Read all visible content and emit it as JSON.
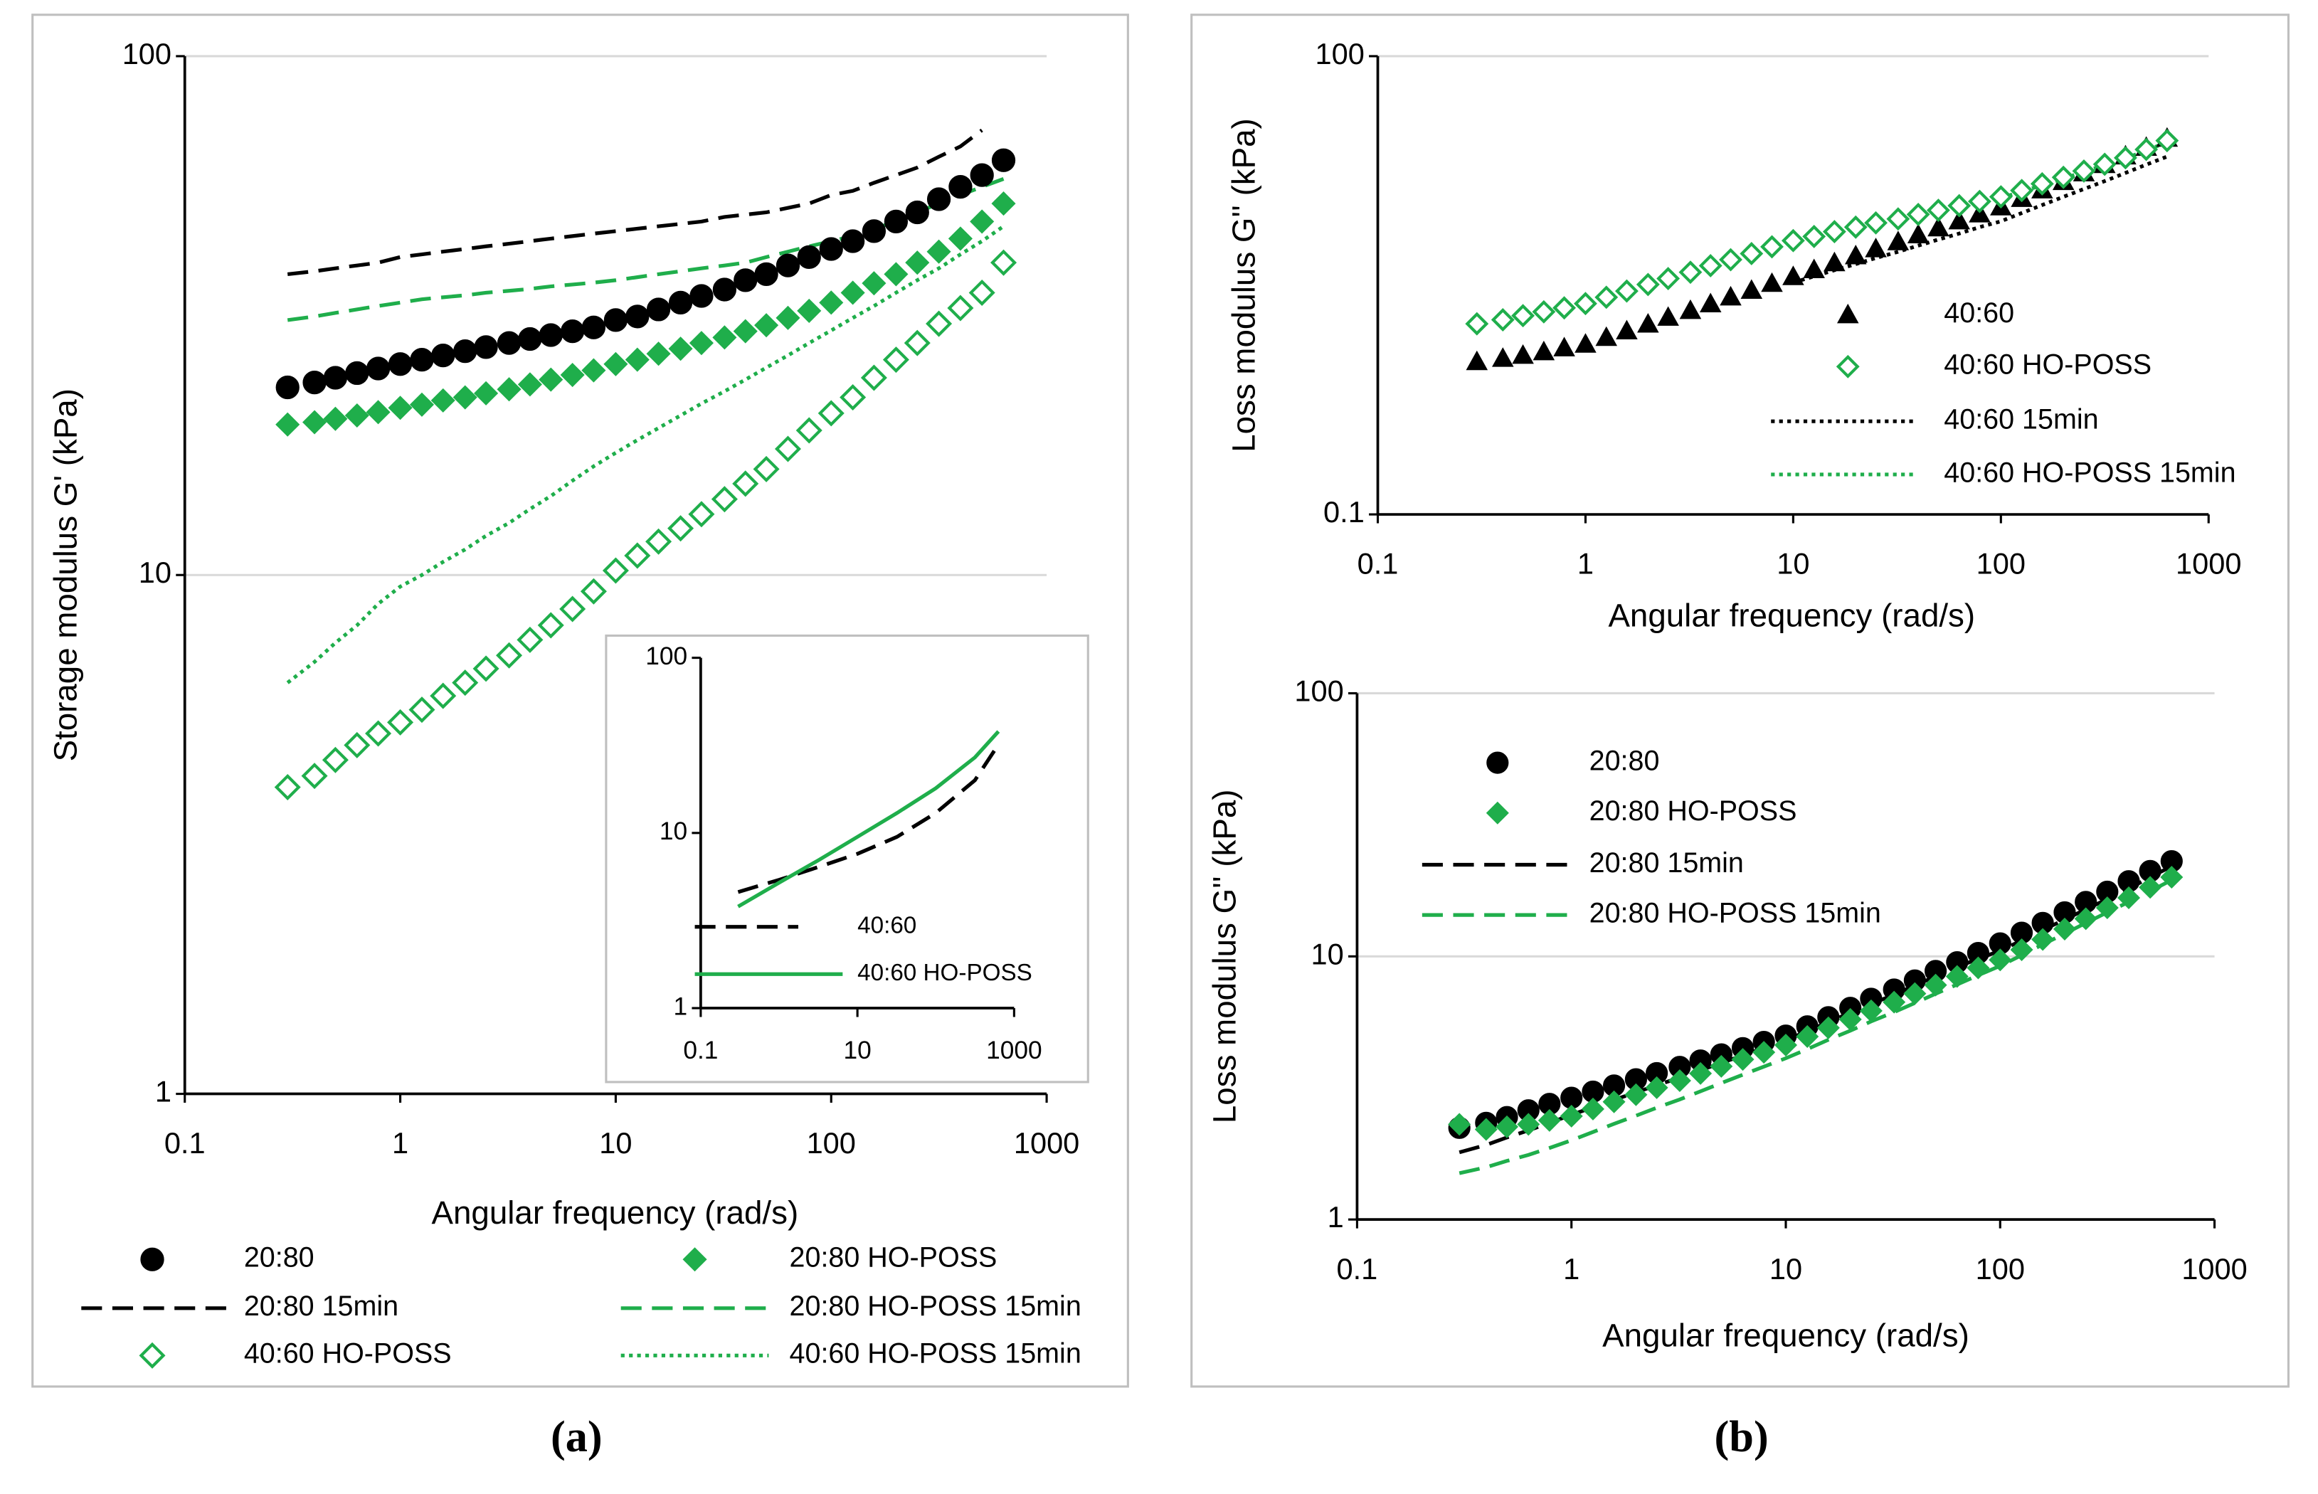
{
  "chart_data": [
    {
      "type": "line",
      "xlabel": "Angular frequency (rad/s)",
      "ylabel": "Storage modulus G' (kPa)",
      "log_x": true,
      "log_y": true,
      "grid": true,
      "xlim": [
        0.1,
        1000
      ],
      "xticks": [
        0.1,
        1,
        10,
        100,
        1000
      ],
      "ylim": [
        1,
        100
      ],
      "yticks": [
        1,
        10,
        100
      ],
      "x": [
        0.3,
        0.4,
        0.5,
        0.63,
        0.79,
        1,
        1.26,
        1.58,
        2,
        2.5,
        3.2,
        4,
        5,
        6.3,
        7.9,
        10,
        12.6,
        15.8,
        20,
        25,
        32,
        40,
        50,
        63,
        79,
        100,
        126,
        158,
        200,
        251,
        316,
        398,
        501,
        631
      ],
      "series": [
        {
          "name": "20:80",
          "color": "#000000",
          "marker": "circle",
          "values": [
            23,
            23.5,
            24,
            24.5,
            25,
            25.5,
            26,
            26.5,
            27,
            27.5,
            28,
            28.5,
            29,
            29.5,
            30,
            31,
            31.5,
            32.5,
            33.5,
            34.5,
            35.5,
            37,
            38,
            39.5,
            41,
            42.5,
            44,
            46,
            48,
            50,
            53,
            56,
            59,
            63
          ]
        },
        {
          "name": "20:80 HO-POSS",
          "color": "#1fae4b",
          "marker": "diamond",
          "values": [
            19.5,
            19.7,
            20,
            20.3,
            20.6,
            21,
            21.3,
            21.7,
            22,
            22.4,
            22.8,
            23.3,
            23.8,
            24.3,
            24.8,
            25.5,
            26,
            26.7,
            27.3,
            28,
            28.7,
            29.5,
            30.3,
            31.3,
            32.3,
            33.5,
            35,
            36.5,
            38,
            40,
            42,
            44.5,
            48,
            52
          ]
        },
        {
          "name": "20:80 15min",
          "color": "#000000",
          "line": "dashed",
          "values": [
            38,
            38.5,
            39,
            39.5,
            40,
            41,
            41.5,
            42,
            42.5,
            43,
            43.5,
            44,
            44.5,
            45,
            45.5,
            46,
            46.5,
            47,
            47.5,
            48,
            49,
            49.5,
            50,
            51,
            52,
            54,
            55,
            57,
            59,
            61,
            64,
            67,
            72,
            null
          ]
        },
        {
          "name": "20:80 HO-POSS 15min",
          "color": "#1fae4b",
          "line": "dashed",
          "values": [
            31,
            31.5,
            32,
            32.5,
            33,
            33.5,
            34,
            34.3,
            34.6,
            35,
            35.3,
            35.6,
            36,
            36.3,
            36.6,
            37,
            37.5,
            38,
            38.5,
            39,
            39.5,
            40,
            41,
            42,
            43,
            44,
            45,
            46.5,
            48,
            50,
            52,
            54,
            56,
            58
          ]
        },
        {
          "name": "40:60 HO-POSS",
          "color": "#1fae4b",
          "marker": "diamond-open",
          "values": [
            3.9,
            4.1,
            4.4,
            4.7,
            4.95,
            5.2,
            5.5,
            5.85,
            6.2,
            6.6,
            7.0,
            7.5,
            8.0,
            8.6,
            9.3,
            10.2,
            10.9,
            11.6,
            12.3,
            13.1,
            14,
            15,
            16,
            17.5,
            19,
            20.5,
            22,
            24,
            26,
            28,
            30.5,
            32.7,
            35,
            40
          ]
        },
        {
          "name": "40:60 HO-POSS 15min",
          "color": "#1fae4b",
          "line": "dotted",
          "values": [
            6.2,
            6.8,
            7.4,
            8,
            8.8,
            9.5,
            10,
            10.6,
            11.2,
            11.9,
            12.6,
            13.4,
            14.2,
            15.2,
            16.2,
            17.2,
            18.2,
            19.2,
            20.3,
            21.4,
            22.6,
            23.8,
            25.1,
            26.5,
            28,
            29.6,
            31.3,
            33,
            35,
            37,
            39,
            41.5,
            44,
            47
          ]
        }
      ]
    },
    {
      "type": "line",
      "log_x": true,
      "log_y": true,
      "grid": false,
      "xlim": [
        0.1,
        1000
      ],
      "xticks": [
        0.1,
        10,
        1000
      ],
      "ylim": [
        1,
        100
      ],
      "yticks": [
        1,
        10,
        100
      ],
      "x": [
        0.3,
        1,
        3.2,
        10,
        32,
        100,
        316,
        631
      ],
      "series": [
        {
          "name": "40:60",
          "color": "#000000",
          "line": "dashed",
          "values": [
            4.6,
            5.4,
            6.4,
            7.6,
            9.5,
            13,
            20,
            32
          ]
        },
        {
          "name": "40:60 HO-POSS",
          "color": "#1fae4b",
          "line": "solid",
          "values": [
            3.8,
            5.2,
            7.0,
            9.5,
            13,
            18,
            27,
            38
          ]
        }
      ]
    },
    {
      "type": "line",
      "xlabel": "Angular frequency (rad/s)",
      "ylabel": "Loss modulus G'' (kPa)",
      "log_x": true,
      "log_y": true,
      "grid": true,
      "xlim": [
        0.1,
        1000
      ],
      "xticks": [
        0.1,
        1,
        10,
        100,
        1000
      ],
      "ylim": [
        0.1,
        100
      ],
      "yticks": [
        0.1,
        100
      ],
      "x": [
        0.3,
        0.4,
        0.5,
        0.63,
        0.79,
        1,
        1.26,
        1.58,
        2,
        2.5,
        3.2,
        4,
        5,
        6.3,
        7.9,
        10,
        12.6,
        15.8,
        20,
        25,
        32,
        40,
        50,
        63,
        79,
        100,
        126,
        158,
        200,
        251,
        316,
        398,
        501,
        631
      ],
      "series": [
        {
          "name": "40:60",
          "color": "#000000",
          "marker": "triangle",
          "values": [
            1.0,
            1.05,
            1.1,
            1.16,
            1.23,
            1.3,
            1.44,
            1.59,
            1.76,
            1.95,
            2.16,
            2.39,
            2.65,
            2.93,
            3.25,
            3.6,
            4.0,
            4.44,
            4.93,
            5.48,
            6.09,
            6.76,
            7.51,
            8.34,
            9.27,
            10.3,
            11.7,
            13.3,
            15.1,
            17.2,
            19.5,
            22.2,
            25.3,
            29
          ]
        },
        {
          "name": "40:60 HO-POSS",
          "color": "#1fae4b",
          "marker": "diamond-open",
          "values": [
            1.77,
            1.88,
            2.0,
            2.12,
            2.25,
            2.4,
            2.64,
            2.9,
            3.2,
            3.5,
            3.85,
            4.25,
            4.65,
            5.1,
            5.65,
            6.2,
            6.6,
            7.1,
            7.6,
            8.1,
            8.6,
            9.2,
            9.8,
            10.5,
            11.2,
            12,
            13.2,
            14.6,
            16.1,
            17.7,
            19.6,
            21.6,
            24.5,
            28
          ]
        },
        {
          "name": "40:60 15min",
          "color": "#000000",
          "line": "dotted",
          "values": [
            null,
            null,
            null,
            null,
            null,
            null,
            null,
            null,
            null,
            null,
            null,
            null,
            null,
            null,
            null,
            3.3,
            3.62,
            3.97,
            4.35,
            4.77,
            5.24,
            5.75,
            6.3,
            6.9,
            7.6,
            8.3,
            9.4,
            10.6,
            12,
            13.5,
            15.2,
            17.2,
            19.5,
            22
          ]
        },
        {
          "name": "40:60 HO-POSS 15min",
          "color": "#1fae4b",
          "line": "dotted",
          "values": [
            null,
            null,
            null,
            null,
            null,
            null,
            null,
            null,
            null,
            null,
            null,
            null,
            null,
            null,
            null,
            null,
            null,
            null,
            null,
            null,
            null,
            null,
            null,
            null,
            null,
            11.8,
            13,
            14.3,
            15.8,
            17.5,
            19.4,
            21.5,
            24,
            27.5
          ]
        }
      ]
    },
    {
      "type": "line",
      "xlabel": "Angular frequency (rad/s)",
      "ylabel": "Loss modulus G'' (kPa)",
      "log_x": true,
      "log_y": true,
      "grid": true,
      "xlim": [
        0.1,
        1000
      ],
      "xticks": [
        0.1,
        1,
        10,
        100,
        1000
      ],
      "ylim": [
        1,
        100
      ],
      "yticks": [
        1,
        10,
        100
      ],
      "x": [
        0.3,
        0.4,
        0.5,
        0.63,
        0.79,
        1,
        1.26,
        1.58,
        2,
        2.5,
        3.2,
        4,
        5,
        6.3,
        7.9,
        10,
        12.6,
        15.8,
        20,
        25,
        32,
        40,
        50,
        63,
        79,
        100,
        126,
        158,
        200,
        251,
        316,
        398,
        501,
        631
      ],
      "series": [
        {
          "name": "20:80",
          "color": "#000000",
          "marker": "circle",
          "values": [
            2.23,
            2.33,
            2.45,
            2.6,
            2.75,
            2.9,
            3.06,
            3.23,
            3.41,
            3.6,
            3.8,
            4.02,
            4.24,
            4.48,
            4.73,
            5.0,
            5.42,
            5.87,
            6.37,
            6.9,
            7.48,
            8.1,
            8.8,
            9.5,
            10.3,
            11.2,
            12.3,
            13.4,
            14.7,
            16.1,
            17.6,
            19.3,
            21.1,
            23
          ]
        },
        {
          "name": "20:80 HO-POSS",
          "color": "#1fae4b",
          "marker": "diamond",
          "values": [
            2.3,
            2.2,
            2.25,
            2.3,
            2.38,
            2.47,
            2.63,
            2.8,
            2.98,
            3.17,
            3.37,
            3.59,
            3.82,
            4.06,
            4.32,
            4.6,
            4.96,
            5.35,
            5.76,
            6.21,
            6.7,
            7.22,
            7.78,
            8.39,
            9.04,
            9.7,
            10.6,
            11.6,
            12.7,
            13.9,
            15.3,
            16.7,
            18.3,
            20
          ]
        },
        {
          "name": "20:80 15min",
          "color": "#000000",
          "line": "dashed",
          "values": [
            1.8,
            1.92,
            2.05,
            2.18,
            2.33,
            2.5,
            2.67,
            2.85,
            3.04,
            3.24,
            3.46,
            3.69,
            3.94,
            4.2,
            4.5,
            4.8,
            5.2,
            5.63,
            6.1,
            6.6,
            7.15,
            7.75,
            8.4,
            9.1,
            9.8,
            10.5,
            11.5,
            12.6,
            13.8,
            15.1,
            16.5,
            18.1,
            20,
            22
          ]
        },
        {
          "name": "20:80 HO-POSS 15min",
          "color": "#1fae4b",
          "line": "dashed",
          "values": [
            1.5,
            1.58,
            1.67,
            1.76,
            1.87,
            2.0,
            2.15,
            2.31,
            2.48,
            2.66,
            2.86,
            3.07,
            3.3,
            3.55,
            3.81,
            4.1,
            4.44,
            4.82,
            5.22,
            5.66,
            6.14,
            6.65,
            7.21,
            7.82,
            8.48,
            9.2,
            10.1,
            11.1,
            12.2,
            13.4,
            14.7,
            16.1,
            17.7,
            19.5
          ]
        }
      ]
    }
  ],
  "captions": [
    "(a)",
    "(b)"
  ]
}
